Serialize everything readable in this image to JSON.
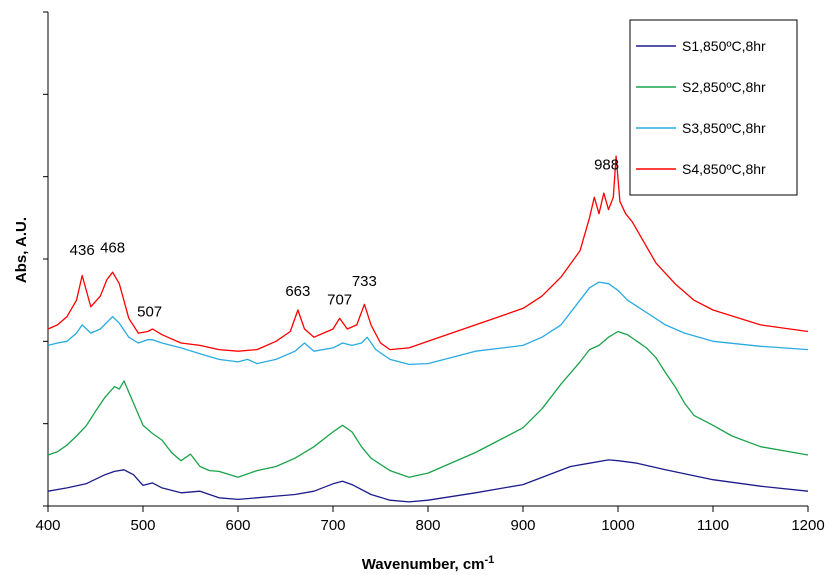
{
  "chart_data": {
    "type": "line",
    "title": "",
    "xlabel": "Wavenumber, cm",
    "xlabel_superscript": "-1",
    "ylabel": "Abs, A.U.",
    "xlim": [
      400,
      1200
    ],
    "ylim": [
      0,
      6
    ],
    "x_ticks": [
      "400",
      "500",
      "600",
      "700",
      "800",
      "900",
      "1000",
      "1100",
      "1200"
    ],
    "y_ticks_labeled": false,
    "grid": false,
    "legend_position": "top-right",
    "annotations": [
      {
        "text": "436",
        "x": 436,
        "y": 3.05
      },
      {
        "text": "468",
        "x": 468,
        "y": 3.08
      },
      {
        "text": "507",
        "x": 507,
        "y": 2.3
      },
      {
        "text": "663",
        "x": 663,
        "y": 2.55
      },
      {
        "text": "707",
        "x": 707,
        "y": 2.45
      },
      {
        "text": "733",
        "x": 733,
        "y": 2.67
      },
      {
        "text": "988",
        "x": 988,
        "y": 4.09
      }
    ],
    "series": [
      {
        "name": "S1,850ºC,8hr",
        "color": "#1c1c8c",
        "x": [
          400,
          420,
          440,
          460,
          470,
          480,
          490,
          500,
          510,
          520,
          540,
          560,
          580,
          600,
          620,
          640,
          660,
          680,
          700,
          710,
          720,
          740,
          760,
          780,
          800,
          850,
          900,
          950,
          970,
          990,
          1000,
          1020,
          1050,
          1100,
          1150,
          1200
        ],
        "y": [
          0.18,
          0.22,
          0.27,
          0.38,
          0.42,
          0.44,
          0.38,
          0.25,
          0.28,
          0.22,
          0.16,
          0.18,
          0.1,
          0.08,
          0.1,
          0.12,
          0.14,
          0.18,
          0.27,
          0.3,
          0.26,
          0.14,
          0.07,
          0.05,
          0.07,
          0.16,
          0.26,
          0.48,
          0.52,
          0.56,
          0.55,
          0.52,
          0.44,
          0.32,
          0.24,
          0.18
        ]
      },
      {
        "name": "S2,850ºC,8hr",
        "color": "#1aa34a",
        "x": [
          400,
          410,
          420,
          430,
          440,
          450,
          460,
          470,
          475,
          480,
          490,
          500,
          510,
          520,
          530,
          540,
          550,
          560,
          570,
          580,
          600,
          620,
          640,
          660,
          680,
          700,
          710,
          720,
          730,
          740,
          760,
          780,
          800,
          850,
          900,
          920,
          940,
          960,
          970,
          980,
          990,
          1000,
          1010,
          1020,
          1030,
          1040,
          1050,
          1060,
          1070,
          1080,
          1100,
          1120,
          1150,
          1200
        ],
        "y": [
          0.62,
          0.66,
          0.74,
          0.85,
          0.97,
          1.15,
          1.32,
          1.45,
          1.42,
          1.52,
          1.25,
          0.98,
          0.88,
          0.8,
          0.65,
          0.55,
          0.63,
          0.48,
          0.43,
          0.42,
          0.35,
          0.43,
          0.48,
          0.58,
          0.72,
          0.9,
          0.98,
          0.9,
          0.72,
          0.58,
          0.43,
          0.35,
          0.4,
          0.65,
          0.95,
          1.18,
          1.48,
          1.75,
          1.9,
          1.95,
          2.05,
          2.12,
          2.08,
          2.0,
          1.92,
          1.8,
          1.62,
          1.45,
          1.25,
          1.1,
          0.98,
          0.85,
          0.72,
          0.62
        ]
      },
      {
        "name": "S3,850ºC,8hr",
        "color": "#29abe2",
        "x": [
          400,
          410,
          420,
          430,
          436,
          445,
          455,
          468,
          475,
          485,
          495,
          505,
          510,
          520,
          540,
          560,
          580,
          600,
          610,
          620,
          640,
          660,
          670,
          680,
          700,
          710,
          720,
          730,
          736,
          745,
          760,
          780,
          800,
          850,
          900,
          920,
          940,
          960,
          970,
          980,
          990,
          1000,
          1010,
          1030,
          1050,
          1070,
          1100,
          1150,
          1200
        ],
        "y": [
          1.95,
          1.98,
          2.0,
          2.1,
          2.2,
          2.1,
          2.15,
          2.3,
          2.22,
          2.05,
          1.98,
          2.02,
          2.02,
          1.98,
          1.92,
          1.85,
          1.78,
          1.75,
          1.78,
          1.73,
          1.78,
          1.88,
          1.98,
          1.88,
          1.92,
          1.98,
          1.95,
          1.98,
          2.05,
          1.9,
          1.78,
          1.72,
          1.73,
          1.88,
          1.95,
          2.05,
          2.2,
          2.5,
          2.65,
          2.72,
          2.7,
          2.62,
          2.5,
          2.35,
          2.2,
          2.1,
          2.0,
          1.94,
          1.9
        ]
      },
      {
        "name": "S4,850ºC,8hr",
        "color": "#ff0000",
        "x": [
          400,
          410,
          420,
          430,
          436,
          445,
          455,
          462,
          468,
          475,
          485,
          495,
          505,
          510,
          520,
          540,
          560,
          580,
          600,
          620,
          640,
          655,
          663,
          670,
          680,
          690,
          700,
          707,
          715,
          725,
          733,
          740,
          750,
          760,
          780,
          800,
          850,
          900,
          920,
          940,
          960,
          970,
          975,
          980,
          985,
          990,
          995,
          998,
          1002,
          1008,
          1015,
          1025,
          1040,
          1060,
          1080,
          1100,
          1150,
          1200
        ],
        "y": [
          2.15,
          2.2,
          2.3,
          2.5,
          2.8,
          2.42,
          2.55,
          2.75,
          2.84,
          2.7,
          2.28,
          2.1,
          2.12,
          2.15,
          2.08,
          1.98,
          1.95,
          1.9,
          1.88,
          1.9,
          2.0,
          2.12,
          2.38,
          2.15,
          2.05,
          2.1,
          2.15,
          2.28,
          2.15,
          2.2,
          2.45,
          2.2,
          1.98,
          1.9,
          1.92,
          2.0,
          2.2,
          2.4,
          2.55,
          2.78,
          3.1,
          3.5,
          3.75,
          3.55,
          3.8,
          3.6,
          3.75,
          4.25,
          3.7,
          3.55,
          3.45,
          3.25,
          2.95,
          2.7,
          2.5,
          2.38,
          2.2,
          2.12
        ]
      }
    ]
  }
}
